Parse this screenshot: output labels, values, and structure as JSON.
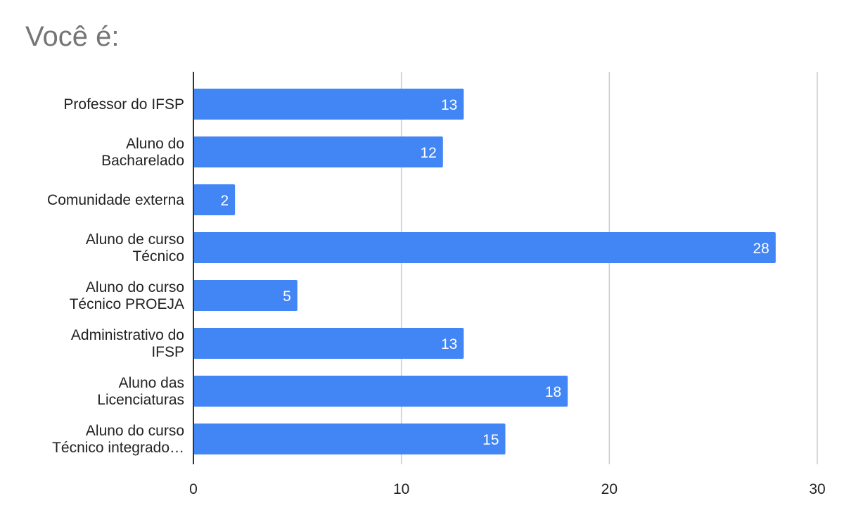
{
  "chart_data": {
    "type": "bar",
    "orientation": "horizontal",
    "title": "Você é:",
    "categories": [
      [
        "Professor do IFSP"
      ],
      [
        "Aluno do",
        "Bacharelado"
      ],
      [
        "Comunidade externa"
      ],
      [
        "Aluno de curso",
        "Técnico"
      ],
      [
        "Aluno do curso",
        "Técnico PROEJA"
      ],
      [
        "Administrativo do",
        "IFSP"
      ],
      [
        "Aluno das",
        "Licenciaturas"
      ],
      [
        "Aluno do curso",
        "Técnico integrado…"
      ]
    ],
    "values": [
      13,
      12,
      2,
      28,
      5,
      13,
      18,
      15
    ],
    "xlim": [
      0,
      30
    ],
    "xticks": [
      0,
      10,
      20,
      30
    ],
    "grid": true,
    "data_labels": true,
    "colors": {
      "bar": "#4285f4",
      "grid": "#cccccc",
      "axis": "#333333"
    }
  }
}
